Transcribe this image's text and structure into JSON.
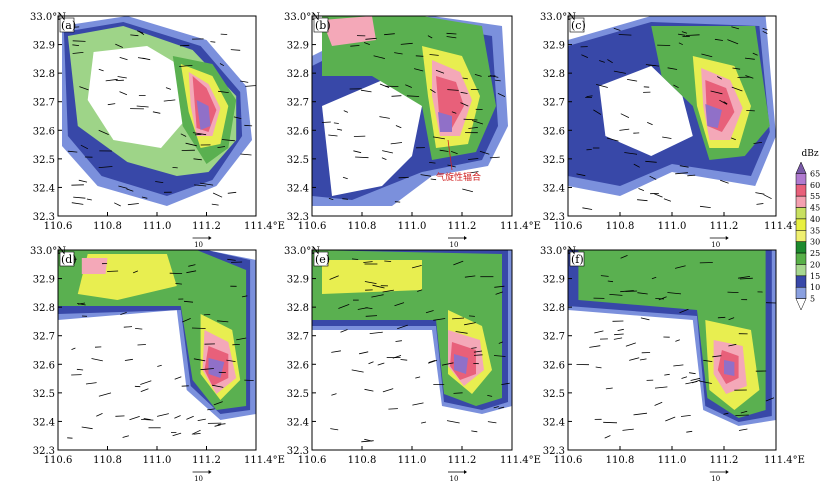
{
  "chart_data": {
    "type": "heatmap",
    "panels": [
      {
        "label": "(a)",
        "annotation": ""
      },
      {
        "label": "(b)",
        "annotation": "气旋性辐合"
      },
      {
        "label": "(c)",
        "annotation": ""
      },
      {
        "label": "(d)",
        "annotation": ""
      },
      {
        "label": "(e)",
        "annotation": ""
      },
      {
        "label": "(f)",
        "annotation": ""
      }
    ],
    "x_ticks": [
      "110.6",
      "110.8",
      "111.0",
      "111.2",
      "111.4°E"
    ],
    "y_ticks": [
      "32.3",
      "32.4",
      "32.5",
      "32.6",
      "32.7",
      "32.8",
      "32.9",
      "33.0°N"
    ],
    "xlim": [
      110.6,
      111.4
    ],
    "ylim": [
      32.3,
      33.0
    ],
    "reference_vector_label": "10",
    "colorbar": {
      "title": "dBz",
      "levels": [
        "65",
        "60",
        "55",
        "45",
        "40",
        "35",
        "30",
        "25",
        "20",
        "15",
        "10",
        "5"
      ],
      "colors": [
        "#7a5aa8",
        "#b07ad0",
        "#e8607a",
        "#f4a0b0",
        "#c8e060",
        "#e8f040",
        "#f0f070",
        "#1e8a2e",
        "#58b048",
        "#a8d890",
        "#3848a8",
        "#8aa0e0",
        "#ffffff"
      ]
    },
    "palette": {
      "purple": "#9070c8",
      "deep_pink": "#e8607a",
      "pink": "#f4a8b8",
      "yellow": "#e8ee50",
      "dark_green": "#2a8a34",
      "green": "#5ab050",
      "light_green": "#9ed488",
      "dark_blue": "#3848a8",
      "light_blue": "#7b90dc"
    }
  }
}
